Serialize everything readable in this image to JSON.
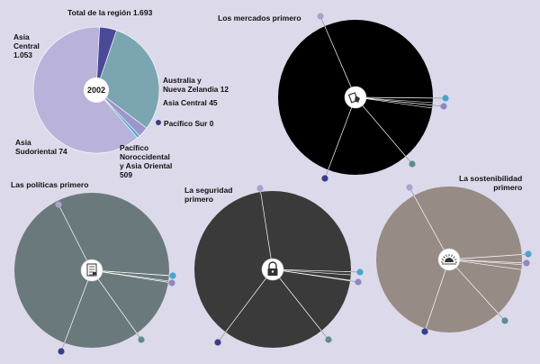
{
  "colors": {
    "background": "#dcdaea",
    "dot_lilac": "#a8a2cf",
    "dot_blue": "#48a6c9",
    "dot_purple": "#8f87c2",
    "dot_navy": "#3a3d8a",
    "dot_teal": "#5d8c94",
    "line": "#ffffff"
  },
  "chart_data": [
    {
      "type": "pie",
      "id": "region-2002",
      "title": "Total de la región 1.693",
      "center_label": "2002",
      "start_angle_deg": 87,
      "slices": [
        {
          "name": "Asia Central",
          "display": "Asia\nCentral\n1.053",
          "value": 1053,
          "color": "#b9b3db"
        },
        {
          "name": "Australia y Nueva Zelandia",
          "display": "Australia y\nNueva Zelandia 12",
          "value": 12,
          "color": "#48a6c9"
        },
        {
          "name": "Asia Central",
          "display": "Asia Central 45",
          "value": 45,
          "color": "#9c96cb"
        },
        {
          "name": "Pacífico Noroccidental y Asia Oriental",
          "display": "Pacífico\nNoroccidental\ny Asia Oriental\n509",
          "value": 509,
          "color": "#7ba6b1"
        },
        {
          "name": "Asia Sudoriental",
          "display": "Asia\nSudoriental 74",
          "value": 74,
          "color": "#4a4a99"
        }
      ],
      "legend_extra": {
        "name": "Pacífico Sur",
        "display": "Pacífico Sur 0",
        "value": 0,
        "color": "#3a3d8a"
      }
    },
    {
      "type": "pie",
      "id": "scenario-markets",
      "title": "Los mercados primero",
      "icon": "market-icon",
      "color": "#000000"
    },
    {
      "type": "pie",
      "id": "scenario-policy",
      "title": "Las políticas primero",
      "icon": "document-icon",
      "color": "#6a7a7c"
    },
    {
      "type": "pie",
      "id": "scenario-security",
      "title": "La seguridad\nprimero",
      "icon": "padlock-icon",
      "color": "#3a3a3a"
    },
    {
      "type": "pie",
      "id": "scenario-sustainability",
      "title": "La sostenibilidad\nprimero",
      "icon": "sunrise-icon",
      "color": "#978b86"
    }
  ]
}
